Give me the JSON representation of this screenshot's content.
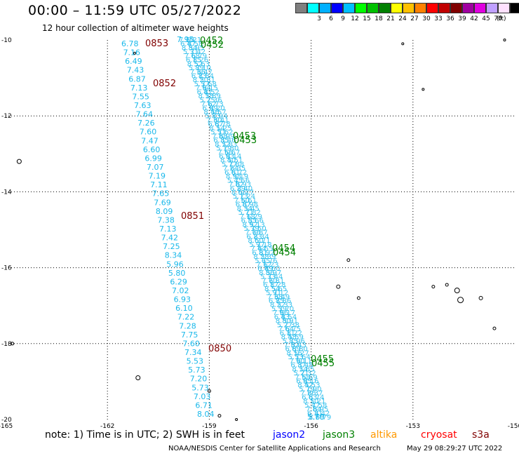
{
  "header": {
    "title": "00:00 – 11:59 UTC 05/27/2022",
    "subtitle": "12 hour collection of altimeter wave heights"
  },
  "legend": {
    "colors": [
      "#7f7f7f",
      "#00ffff",
      "#00b0ff",
      "#0000ff",
      "#00c0ff",
      "#00ff00",
      "#00c000",
      "#008000",
      "#ffff00",
      "#ffc000",
      "#ff8000",
      "#ff0000",
      "#c00000",
      "#800000",
      "#a000a0",
      "#e000e0",
      "#c0a0ff",
      "#ffe0ff",
      "#000000"
    ],
    "labels": [
      "3",
      "6",
      "9",
      "12",
      "15",
      "18",
      "21",
      "24",
      "27",
      "30",
      "33",
      "36",
      "39",
      "42",
      "45",
      "70"
    ],
    "unit": "(ft)"
  },
  "map": {
    "lon_min": -165,
    "lon_max": -150,
    "lat_min": -20,
    "lat_max": -10,
    "x_ticks": [
      {
        "lon": -165,
        "label": "-165"
      },
      {
        "lon": -162,
        "label": "-162"
      },
      {
        "lon": -159,
        "label": "-159"
      },
      {
        "lon": -156,
        "label": "-156"
      },
      {
        "lon": -153,
        "label": "-153"
      },
      {
        "lon": -150,
        "label": "-150"
      }
    ],
    "y_ticks": [
      {
        "lat": -10,
        "label": "-10"
      },
      {
        "lat": -12,
        "label": "-12"
      },
      {
        "lat": -14,
        "label": "-14"
      },
      {
        "lat": -16,
        "label": "-16"
      },
      {
        "lat": -18,
        "label": "-18"
      },
      {
        "lat": -20,
        "label": "-20"
      }
    ],
    "swh_color": "#19b8ea",
    "left_track_values": [
      "6.78",
      "7.16",
      "6.49",
      "7.43",
      "6.87",
      "7.13",
      "7.55",
      "7.63",
      "7.64",
      "7.26",
      "7.60",
      "7.47",
      "6.60",
      "6.99",
      "7.07",
      "7.19",
      "7.11",
      "7.65",
      "7.69",
      "8.09",
      "7.38",
      "7.13",
      "7.42",
      "7.25",
      "8.34",
      "5.96",
      "5.80",
      "6.29",
      "7.02",
      "6.93",
      "6.10",
      "7.22",
      "7.28",
      "7.75",
      "7.60",
      "7.34",
      "5.53",
      "5.73",
      "7.20",
      "5.73",
      "7.03",
      "6.71",
      "8.04"
    ],
    "left_track_times": [
      {
        "label": "0853",
        "color": "#800000"
      },
      {
        "label": "0852",
        "color": "#800000"
      },
      {
        "label": "0851",
        "color": "#800000"
      },
      {
        "label": "0850",
        "color": "#800000"
      }
    ],
    "right_track_start": "7.95",
    "right_track_end": "5.70",
    "right_track_times": [
      {
        "label": "0452",
        "color": "#008000"
      },
      {
        "label": "0453",
        "color": "#008000"
      },
      {
        "label": "0454",
        "color": "#008000"
      },
      {
        "label": "0455",
        "color": "#008000"
      }
    ]
  },
  "footer": {
    "note": "note: 1) Time is in UTC; 2) SWH is in feet",
    "satellites": [
      {
        "name": "jason2",
        "color": "#0000ff"
      },
      {
        "name": "jason3",
        "color": "#008000"
      },
      {
        "name": "altika",
        "color": "#ff9900"
      },
      {
        "name": "cryosat",
        "color": "#ff0000"
      },
      {
        "name": "s3a",
        "color": "#800000"
      }
    ],
    "credit": "NOAA/NESDIS Center for Satellite Applications and Research",
    "timestamp": "May 29 08:29:27 UTC 2022"
  }
}
